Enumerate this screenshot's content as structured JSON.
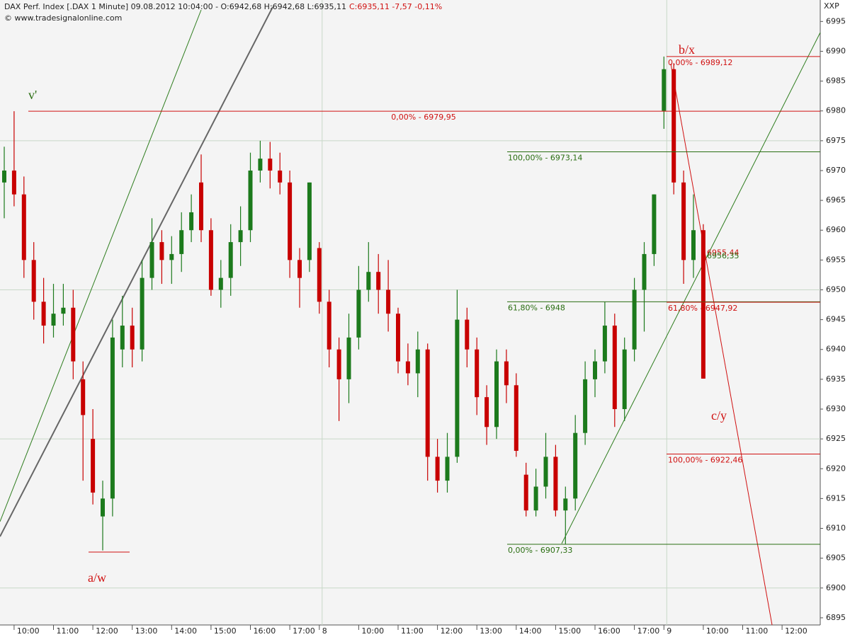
{
  "chart_data": {
    "type": "candlestick",
    "title": "DAX Perf. Index [.DAX  1 Minute] 09.08.2012 10:04:00 - O:6942,68 H:6942,68 L:6935,11",
    "title_change": "C:6935,11 -7,57 -0,11%",
    "source": "© www.tradesignalonline.com",
    "corner_label": "XXP",
    "categories": [
      null,
      "10:00",
      null,
      null,
      null,
      "11:00",
      null,
      null,
      null,
      "12:00",
      null,
      null,
      null,
      "13:00",
      null,
      null,
      null,
      "14:00",
      null,
      null,
      null,
      "15:00",
      null,
      null,
      null,
      "16:00",
      null,
      null,
      null,
      "17:00",
      null,
      null,
      "8",
      null,
      null,
      null,
      "10:00",
      null,
      null,
      null,
      "11:00",
      null,
      null,
      null,
      "12:00",
      null,
      null,
      null,
      "13:00",
      null,
      null,
      null,
      "14:00",
      null,
      null,
      null,
      "15:00",
      null,
      null,
      null,
      "16:00",
      null,
      null,
      null,
      "17:00",
      null,
      null,
      "9",
      null,
      null,
      null,
      "10:00",
      null,
      null,
      null,
      "11:00",
      null,
      null,
      null,
      "12:00",
      null,
      null,
      null
    ],
    "open": [
      6968,
      6970,
      6966,
      6955,
      6948,
      6944,
      6946,
      6947,
      6935,
      6925,
      6912,
      6915,
      6940,
      6944,
      6940,
      6952,
      6958,
      6955,
      6956,
      6960,
      6968,
      6960,
      6950,
      6952,
      6958,
      6960,
      6970,
      6972,
      6970,
      6968,
      6955,
      6955,
      6957,
      6948,
      6940,
      6935,
      6942,
      6950,
      6953,
      6950,
      6946,
      6938,
      6936,
      6940,
      6922,
      6918,
      6922,
      6945,
      6940,
      6932,
      6927,
      6938,
      6934,
      6919,
      6913,
      6917,
      6922,
      6913,
      6915,
      6926,
      6935,
      6938,
      6944,
      6930,
      6940,
      6950,
      6956,
      6980,
      6987,
      6968,
      6955,
      6960,
      null,
      null,
      null,
      null,
      null,
      null,
      null,
      null,
      null,
      null,
      null
    ],
    "high": [
      6974,
      6979.95,
      6969,
      6958,
      6952,
      6951,
      6951,
      6950,
      6938,
      6930,
      6918,
      6945,
      6949,
      6947,
      6955,
      6962,
      6960,
      6959,
      6963,
      6966,
      6972.7,
      6962,
      6955,
      6961,
      6964,
      6973,
      6975,
      6974.8,
      6973,
      6970,
      6957,
      6968,
      6958,
      6950,
      6942,
      6946,
      6954,
      6958,
      6956,
      6955,
      6947,
      6941,
      6943,
      6941,
      6925,
      6926,
      6950,
      6947,
      6942,
      6934,
      6940,
      6940,
      6936,
      6921,
      6920,
      6926,
      6924,
      6917,
      6929,
      6938,
      6940,
      6948,
      6946,
      6942,
      6952,
      6958,
      6966,
      6989.12,
      6988,
      6970,
      6966,
      6961,
      null,
      null,
      null,
      null,
      null,
      null,
      null,
      null,
      null,
      null,
      null
    ],
    "low": [
      6962,
      6964,
      6952,
      6945,
      6941,
      6942,
      6944,
      6935,
      6918,
      6914,
      6906.3,
      6912,
      6937,
      6937,
      6938,
      6950,
      6951,
      6951,
      6953,
      6958,
      6958,
      6949,
      6947,
      6949,
      6954,
      6958,
      6968,
      6967,
      6966,
      6952,
      6947,
      6953,
      6946,
      6937,
      6928,
      6931,
      6940,
      6948,
      6946,
      6943,
      6936,
      6934,
      6932,
      6918,
      6916,
      6916,
      6921,
      6937,
      6929,
      6924,
      6925,
      6931,
      6922,
      6912,
      6912,
      6915,
      6912,
      6907.33,
      6913,
      6924,
      6932,
      6936,
      6927,
      6928,
      6938,
      6943,
      6954,
      6977,
      6966,
      6951,
      6952,
      6935.11,
      null,
      null,
      null,
      null,
      null,
      null,
      null,
      null,
      null,
      null,
      null
    ],
    "close": [
      6970,
      6966,
      6955,
      6948,
      6944,
      6946,
      6947,
      6938,
      6929,
      6916,
      6915,
      6942,
      6944,
      6940,
      6952,
      6958,
      6955,
      6956,
      6960,
      6963,
      6960,
      6950,
      6952,
      6958,
      6960,
      6970,
      6972,
      6970,
      6968,
      6955,
      6952,
      6968,
      6948,
      6940,
      6935,
      6942,
      6950,
      6953,
      6950,
      6946,
      6938,
      6936,
      6940,
      6922,
      6918,
      6922,
      6945,
      6940,
      6932,
      6927,
      6938,
      6934,
      6923,
      6913,
      6917,
      6922,
      6913,
      6915,
      6926,
      6935,
      6938,
      6944,
      6930,
      6940,
      6950,
      6956,
      6966,
      6987,
      6968,
      6955,
      6960,
      6935.11,
      null,
      null,
      null,
      null,
      null,
      null,
      null,
      null,
      null,
      null,
      null
    ],
    "up_color": "#1c7a1c",
    "down_color": "#c80000",
    "ylim": [
      6893.8,
      6998.6
    ],
    "yticks": [
      6895,
      6900,
      6905,
      6910,
      6915,
      6920,
      6925,
      6930,
      6935,
      6940,
      6945,
      6950,
      6955,
      6960,
      6965,
      6970,
      6975,
      6980,
      6985,
      6990,
      6995
    ],
    "levels": [
      {
        "label": "0,00% - 6979,95",
        "value": 6979.95,
        "color": "#d01010"
      },
      {
        "label": "100,00% - 6973,14",
        "value": 6973.14,
        "color": "#2a6e12"
      },
      {
        "label": "61,80% - 6948",
        "value": 6948,
        "color": "#2a6e12"
      },
      {
        "label": "0,00% - 6907,33",
        "value": 6907.33,
        "color": "#2a6e12"
      },
      {
        "label": "0,00% - 6989,12",
        "value": 6989.12,
        "color": "#d01010"
      },
      {
        "label": "61,80% - 6947,92",
        "value": 6947.92,
        "color": "#d01010"
      },
      {
        "label": "100,00% - 6922,46",
        "value": 6922.46,
        "color": "#d01010"
      },
      {
        "label": "6955,44",
        "value": 6955.44,
        "color": "#d01010"
      },
      {
        "label": "6956,35",
        "value": 6956.35,
        "color": "#2a6e12"
      }
    ],
    "annotations": [
      {
        "text": "v'",
        "color": "#2a6e12"
      },
      {
        "text": "a/w",
        "color": "#d01010"
      },
      {
        "text": "b/x",
        "color": "#d01010"
      },
      {
        "text": "c/y",
        "color": "#d01010"
      }
    ]
  }
}
